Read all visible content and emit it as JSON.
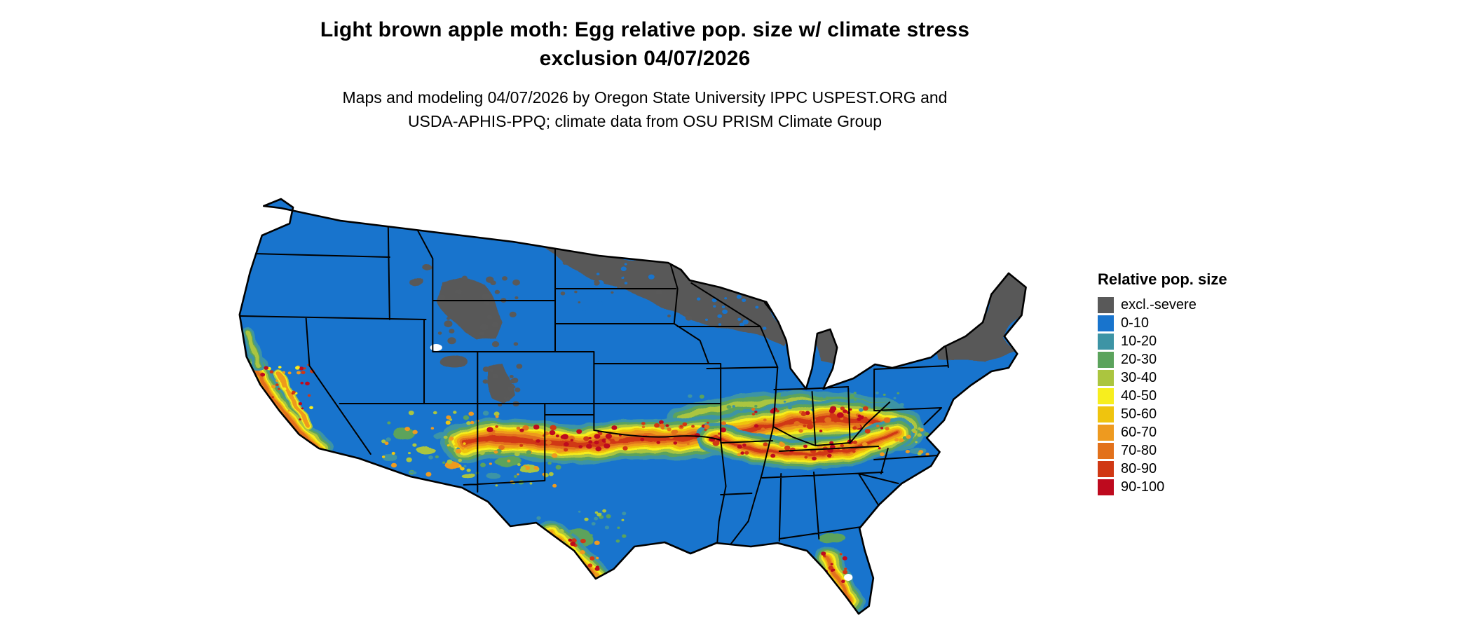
{
  "title": {
    "line1": "Light brown apple moth: Egg relative pop. size w/ climate stress",
    "line2": "exclusion 04/07/2026"
  },
  "subtitle": {
    "line1": "Maps and modeling 04/07/2026 by Oregon State University IPPC USPEST.ORG and",
    "line2": "USDA-APHIS-PPQ; climate data from OSU PRISM Climate Group"
  },
  "map": {
    "border_color": "#000000",
    "water_color": "#FFFFFF"
  },
  "legend": {
    "title": "Relative pop. size",
    "items": [
      {
        "label": "excl.-severe",
        "color": "#595959"
      },
      {
        "label": "0-10",
        "color": "#1874CD"
      },
      {
        "label": "10-20",
        "color": "#3D94A5"
      },
      {
        "label": "20-30",
        "color": "#5BA35C"
      },
      {
        "label": "30-40",
        "color": "#ABC53F"
      },
      {
        "label": "40-50",
        "color": "#F7EE1E"
      },
      {
        "label": "50-60",
        "color": "#EFC40E"
      },
      {
        "label": "60-70",
        "color": "#EE9A1F"
      },
      {
        "label": "70-80",
        "color": "#E2711B"
      },
      {
        "label": "80-90",
        "color": "#D03814"
      },
      {
        "label": "90-100",
        "color": "#BE0A1E"
      }
    ]
  }
}
